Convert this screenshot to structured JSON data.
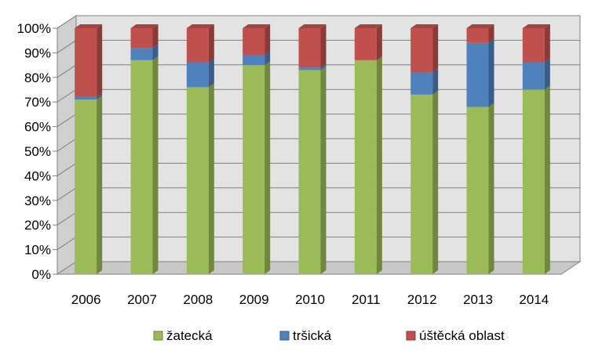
{
  "chart_data": {
    "type": "bar",
    "stacked": "percent",
    "three_d": true,
    "categories": [
      "2006",
      "2007",
      "2008",
      "2009",
      "2010",
      "2011",
      "2012",
      "2013",
      "2014"
    ],
    "series": [
      {
        "name": "žatecká",
        "values": [
          71,
          87,
          76,
          85,
          83,
          87,
          73,
          68,
          75
        ],
        "color": "#9bbb59"
      },
      {
        "name": "tršická",
        "values": [
          1,
          5,
          10,
          4,
          1,
          0,
          9,
          26,
          11
        ],
        "color": "#4f81bd"
      },
      {
        "name": "úštěcká oblast",
        "values": [
          28,
          8,
          14,
          11,
          16,
          13,
          18,
          6,
          14
        ],
        "color": "#c0504d"
      }
    ],
    "y_ticks": [
      "0%",
      "10%",
      "20%",
      "30%",
      "40%",
      "50%",
      "60%",
      "70%",
      "80%",
      "90%",
      "100%"
    ],
    "ylim": [
      0,
      100
    ],
    "grid": true,
    "legend_position": "bottom",
    "title": "",
    "xlabel": "",
    "ylabel": ""
  }
}
